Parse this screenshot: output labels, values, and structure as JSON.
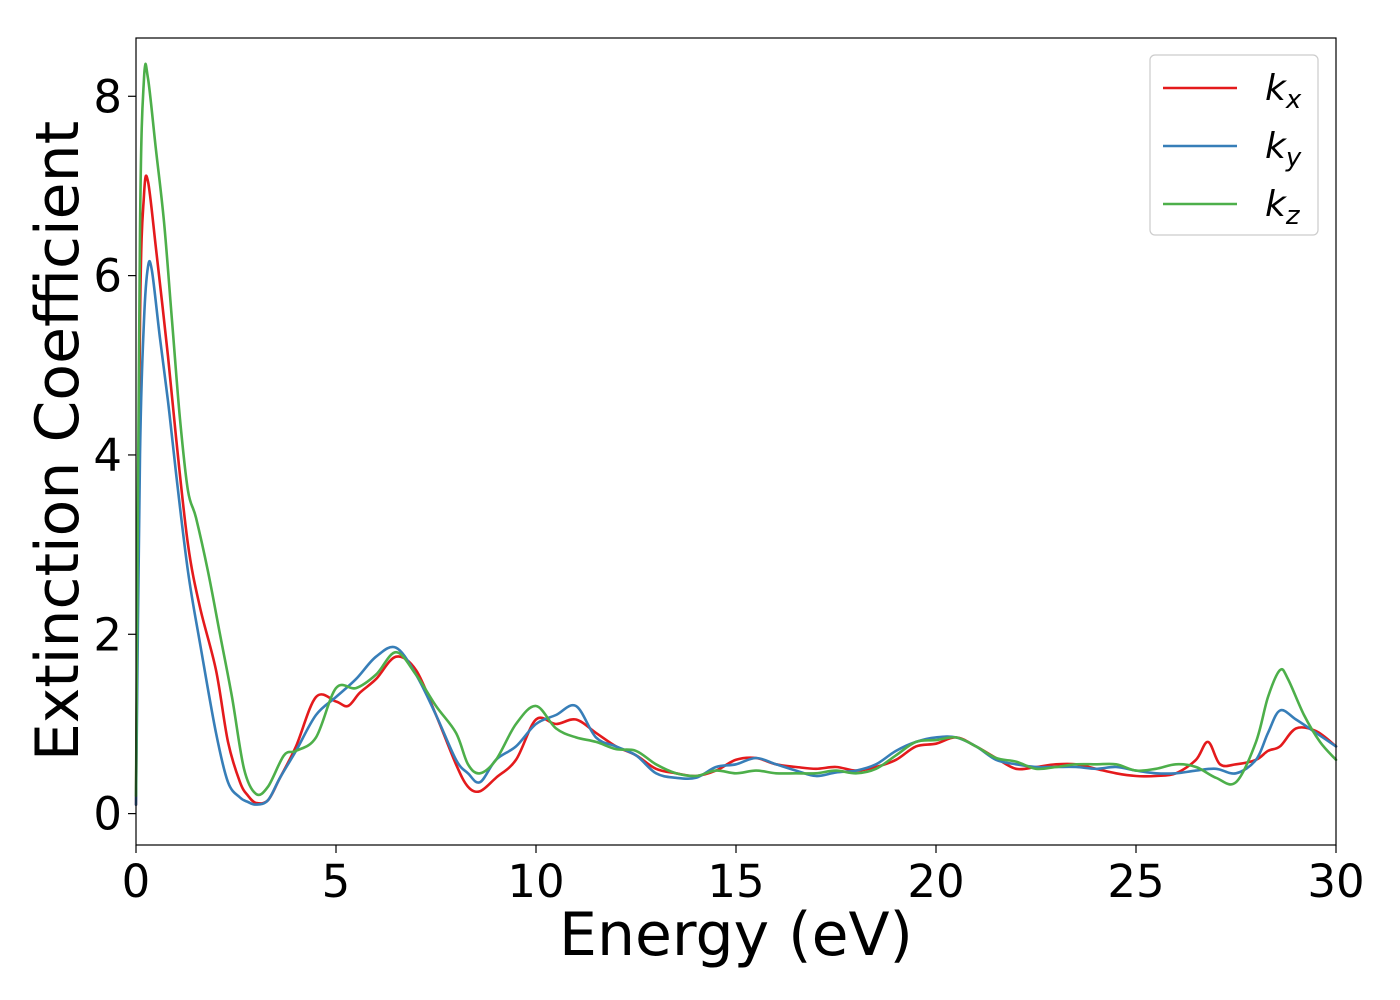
{
  "chart_data": {
    "type": "line",
    "title": "",
    "xlabel": "Energy (eV)",
    "ylabel": "Extinction Coefficient",
    "xlim": [
      0,
      30
    ],
    "ylim": [
      -0.35,
      8.65
    ],
    "xticks": [
      0,
      5,
      10,
      15,
      20,
      25,
      30
    ],
    "xtick_labels": [
      "0",
      "5",
      "10",
      "15",
      "20",
      "25",
      "30"
    ],
    "yticks": [
      0,
      2,
      4,
      6,
      8
    ],
    "ytick_labels": [
      "0",
      "2",
      "4",
      "6",
      "8"
    ],
    "grid": false,
    "legend_position": "top-right",
    "series": [
      {
        "name": "k",
        "subscript": "x",
        "color": "#e41a1c",
        "x": [
          0,
          0.1,
          0.2,
          0.3,
          0.5,
          0.8,
          1.0,
          1.3,
          1.6,
          2.0,
          2.3,
          2.6,
          2.8,
          3.0,
          3.3,
          3.6,
          4.0,
          4.5,
          5.0,
          5.3,
          5.6,
          6.0,
          6.5,
          7.0,
          7.5,
          8.0,
          8.3,
          8.6,
          9.0,
          9.5,
          10.0,
          10.5,
          11.0,
          11.5,
          12.0,
          12.5,
          13.0,
          13.5,
          14.0,
          14.5,
          15.0,
          15.5,
          16.0,
          16.5,
          17.0,
          17.5,
          18.0,
          18.5,
          19.0,
          19.5,
          20.0,
          20.5,
          21.0,
          21.5,
          22.0,
          22.5,
          23.0,
          23.5,
          24.0,
          24.5,
          25.0,
          25.5,
          26.0,
          26.5,
          26.8,
          27.1,
          27.5,
          28.0,
          28.3,
          28.6,
          29.0,
          29.5,
          30.0
        ],
        "y": [
          0.1,
          5.5,
          6.9,
          7.05,
          6.3,
          5.1,
          4.2,
          3.0,
          2.3,
          1.6,
          0.8,
          0.35,
          0.2,
          0.12,
          0.15,
          0.4,
          0.75,
          1.3,
          1.25,
          1.2,
          1.35,
          1.5,
          1.75,
          1.6,
          1.1,
          0.55,
          0.3,
          0.25,
          0.4,
          0.6,
          1.05,
          1.0,
          1.05,
          0.9,
          0.75,
          0.65,
          0.5,
          0.45,
          0.42,
          0.48,
          0.6,
          0.62,
          0.55,
          0.52,
          0.5,
          0.52,
          0.48,
          0.52,
          0.6,
          0.75,
          0.78,
          0.85,
          0.75,
          0.62,
          0.5,
          0.52,
          0.55,
          0.55,
          0.5,
          0.45,
          0.42,
          0.42,
          0.45,
          0.6,
          0.8,
          0.55,
          0.55,
          0.6,
          0.7,
          0.75,
          0.95,
          0.92,
          0.75
        ]
      },
      {
        "name": "k",
        "subscript": "y",
        "color": "#377eb8",
        "x": [
          0,
          0.1,
          0.2,
          0.3,
          0.4,
          0.6,
          0.8,
          1.0,
          1.3,
          1.6,
          2.0,
          2.3,
          2.6,
          2.8,
          3.0,
          3.3,
          3.6,
          4.0,
          4.5,
          5.0,
          5.5,
          6.0,
          6.5,
          7.0,
          7.5,
          8.0,
          8.3,
          8.6,
          9.0,
          9.5,
          10.0,
          10.5,
          11.0,
          11.5,
          12.0,
          12.5,
          13.0,
          13.5,
          14.0,
          14.5,
          15.0,
          15.5,
          16.0,
          16.5,
          17.0,
          17.5,
          18.0,
          18.5,
          19.0,
          19.5,
          20.0,
          20.5,
          21.0,
          21.5,
          22.0,
          22.5,
          23.0,
          23.5,
          24.0,
          24.5,
          25.0,
          25.5,
          26.0,
          26.5,
          27.0,
          27.5,
          28.0,
          28.3,
          28.6,
          29.0,
          29.5,
          30.0
        ],
        "y": [
          0.1,
          4.0,
          5.5,
          6.1,
          6.05,
          5.3,
          4.6,
          3.8,
          2.7,
          1.9,
          0.9,
          0.35,
          0.18,
          0.13,
          0.1,
          0.15,
          0.4,
          0.7,
          1.1,
          1.3,
          1.5,
          1.75,
          1.85,
          1.55,
          1.1,
          0.6,
          0.45,
          0.35,
          0.6,
          0.75,
          1.0,
          1.1,
          1.2,
          0.85,
          0.75,
          0.65,
          0.45,
          0.4,
          0.4,
          0.52,
          0.55,
          0.62,
          0.55,
          0.48,
          0.42,
          0.46,
          0.48,
          0.55,
          0.7,
          0.8,
          0.85,
          0.85,
          0.75,
          0.6,
          0.55,
          0.52,
          0.52,
          0.52,
          0.5,
          0.52,
          0.48,
          0.45,
          0.45,
          0.48,
          0.5,
          0.45,
          0.6,
          0.9,
          1.15,
          1.05,
          0.9,
          0.75
        ]
      },
      {
        "name": "k",
        "subscript": "z",
        "color": "#4daf4a",
        "x": [
          0,
          0.1,
          0.2,
          0.3,
          0.5,
          0.7,
          0.9,
          1.1,
          1.3,
          1.5,
          1.8,
          2.1,
          2.4,
          2.7,
          3.0,
          3.3,
          3.7,
          4.0,
          4.5,
          5.0,
          5.5,
          6.0,
          6.5,
          7.0,
          7.5,
          8.0,
          8.3,
          8.6,
          9.0,
          9.5,
          10.0,
          10.5,
          11.0,
          11.5,
          12.0,
          12.5,
          13.0,
          13.5,
          14.0,
          14.5,
          15.0,
          15.5,
          16.0,
          16.5,
          17.0,
          17.5,
          18.0,
          18.5,
          19.0,
          19.5,
          20.0,
          20.5,
          21.0,
          21.5,
          22.0,
          22.5,
          23.0,
          23.5,
          24.0,
          24.5,
          25.0,
          25.5,
          26.0,
          26.5,
          27.0,
          27.5,
          28.0,
          28.3,
          28.6,
          28.8,
          29.2,
          29.6,
          30.0
        ],
        "y": [
          0.2,
          6.5,
          8.2,
          8.2,
          7.4,
          6.6,
          5.5,
          4.4,
          3.6,
          3.3,
          2.7,
          2.0,
          1.3,
          0.5,
          0.22,
          0.3,
          0.65,
          0.7,
          0.85,
          1.4,
          1.4,
          1.55,
          1.8,
          1.55,
          1.2,
          0.9,
          0.55,
          0.45,
          0.6,
          1.0,
          1.2,
          0.95,
          0.85,
          0.8,
          0.72,
          0.7,
          0.55,
          0.45,
          0.42,
          0.48,
          0.45,
          0.48,
          0.45,
          0.45,
          0.45,
          0.48,
          0.45,
          0.5,
          0.65,
          0.8,
          0.82,
          0.85,
          0.75,
          0.62,
          0.58,
          0.5,
          0.52,
          0.55,
          0.55,
          0.55,
          0.48,
          0.5,
          0.55,
          0.52,
          0.4,
          0.35,
          0.8,
          1.3,
          1.6,
          1.5,
          1.1,
          0.8,
          0.6
        ]
      }
    ]
  }
}
